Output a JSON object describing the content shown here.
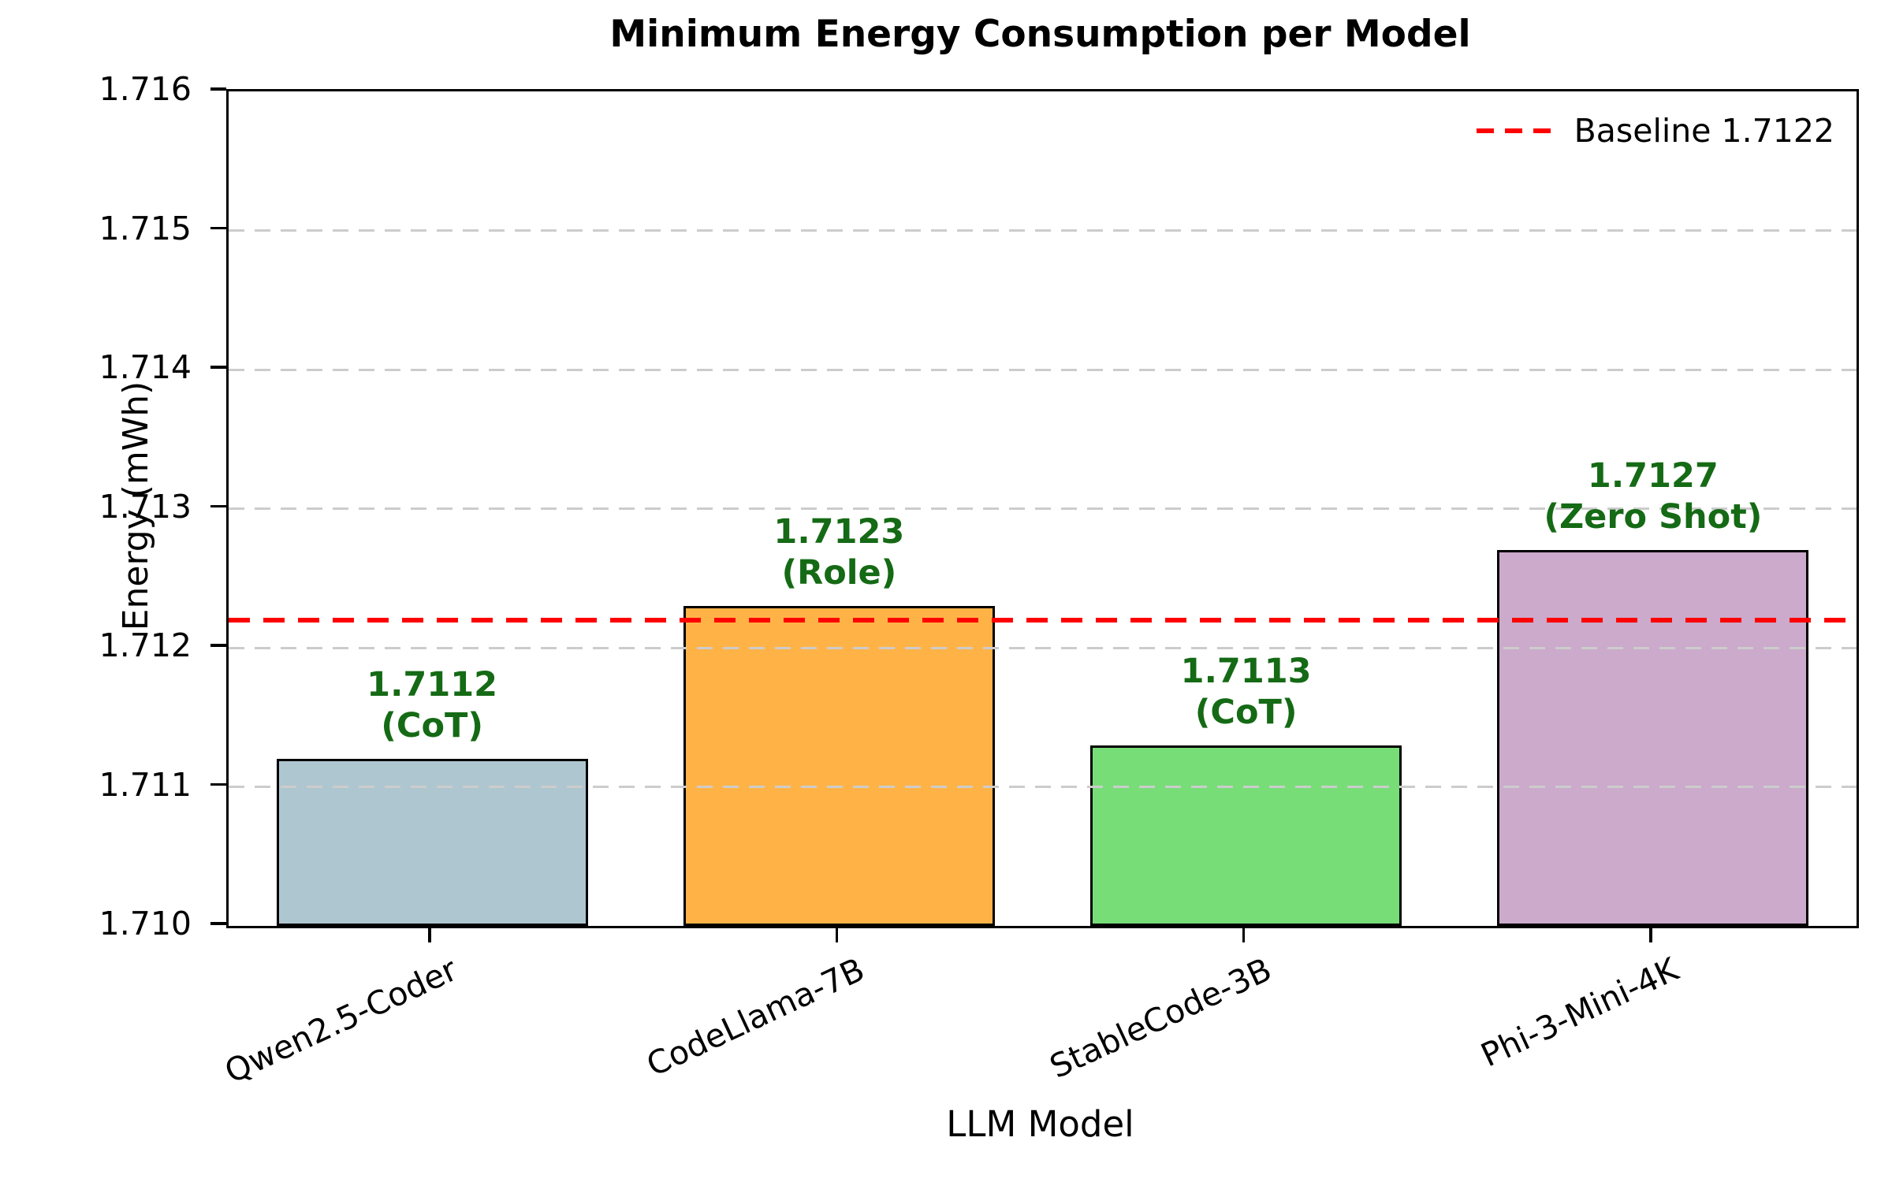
{
  "title": "Minimum Energy Consumption per Model",
  "chart_data": {
    "type": "bar",
    "title": "Minimum Energy Consumption per Model",
    "xlabel": "LLM Model",
    "ylabel": "Energy (mWh)",
    "categories": [
      "Qwen2.5-Coder",
      "CodeLlama-7B",
      "StableCode-3B",
      "Phi-3-Mini-4K"
    ],
    "values": [
      1.7112,
      1.7123,
      1.7113,
      1.7127
    ],
    "annotations": [
      {
        "value_label": "1.7112",
        "strategy_label": "(CoT)"
      },
      {
        "value_label": "1.7123",
        "strategy_label": "(Role)"
      },
      {
        "value_label": "1.7113",
        "strategy_label": "(CoT)"
      },
      {
        "value_label": "1.7127",
        "strategy_label": "(Zero Shot)"
      }
    ],
    "bar_colors": [
      "#aec6cf",
      "#ffb347",
      "#77dd77",
      "#cbaacb"
    ],
    "bar_edge_color": "#000000",
    "annotation_color": "#156a15",
    "ylim": [
      1.71,
      1.716
    ],
    "yticks": [
      1.71,
      1.711,
      1.712,
      1.713,
      1.714,
      1.715,
      1.716
    ],
    "ytick_labels": [
      "1.710",
      "1.711",
      "1.712",
      "1.713",
      "1.714",
      "1.715",
      "1.716"
    ],
    "grid": true,
    "grid_color": "#cccccc",
    "baseline": {
      "value": 1.7122,
      "label": "Baseline 1.7122",
      "color": "#ff0000",
      "style": "dashed"
    },
    "legend_position": "upper right"
  }
}
